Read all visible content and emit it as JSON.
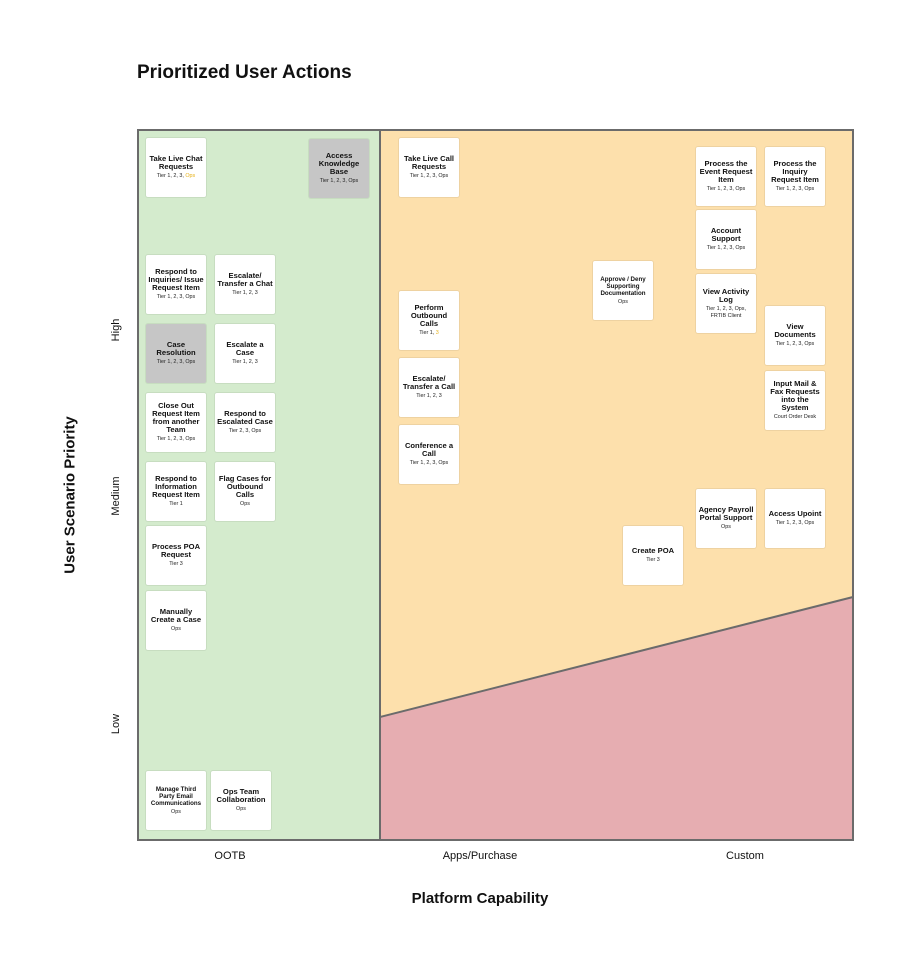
{
  "title": "Prioritized User Actions",
  "axes": {
    "y_title": "User Scenario Priority",
    "x_title": "Platform Capability",
    "y_levels": [
      "High",
      "Medium",
      "Low"
    ],
    "x_levels": [
      "OOTB",
      "Apps/Purchase",
      "Custom"
    ]
  },
  "colors": {
    "ootb_region": "#d4ebcd",
    "apps_region": "#fde0ac",
    "custom_region": "#e6adb1",
    "border": "#6b6b6b",
    "gray_card": "#c6c6c6",
    "highlight_text": "#e7b21b"
  },
  "cards": [
    {
      "title": "Take Live Chat Requests",
      "sub": "Tier 1, 2, 3, ",
      "hl": "Ops",
      "gray": false
    },
    {
      "title": "Access Knowledge Base",
      "sub": "Tier 1, 2, 3, Ops",
      "gray": true
    },
    {
      "title": "Respond to Inquiries/ Issue Request Item",
      "sub": "Tier 1, 2, 3, Ops",
      "gray": false
    },
    {
      "title": "Escalate/ Transfer a Chat",
      "sub": "Tier 1, 2, 3",
      "gray": false
    },
    {
      "title": "Case Resolution",
      "sub": "Tier 1, 2, 3, Ops",
      "gray": true
    },
    {
      "title": "Escalate a Case",
      "sub": "Tier 1, 2, 3",
      "gray": false
    },
    {
      "title": "Close Out Request Item from another Team",
      "sub": "Tier 1, 2, 3, Ops",
      "gray": false
    },
    {
      "title": "Respond to Escalated Case",
      "sub": "Tier 2, 3, Ops",
      "gray": false
    },
    {
      "title": "Respond to Information Request Item",
      "sub": "Tier 1",
      "gray": false
    },
    {
      "title": "Flag Cases for Outbound Calls",
      "sub": "Ops",
      "gray": false
    },
    {
      "title": "Process POA Request",
      "sub": "Tier 3",
      "gray": false
    },
    {
      "title": "Manually Create a Case",
      "sub": "Ops",
      "gray": false
    },
    {
      "title": "Manage Third Party Email Communications",
      "sub": "Ops",
      "gray": false,
      "small": true
    },
    {
      "title": "Ops Team Collaboration",
      "sub": "Ops",
      "gray": false
    },
    {
      "title": "Take Live Call Requests",
      "sub": "Tier 1, 2, 3, Ops",
      "gray": false
    },
    {
      "title": "Perform Outbound Calls",
      "sub": "Tier 1, ",
      "hl": "3",
      "gray": false
    },
    {
      "title": "Escalate/ Transfer a Call",
      "sub": "Tier 1, 2, 3",
      "gray": false
    },
    {
      "title": "Conference a Call",
      "sub": "Tier 1, 2, 3, Ops",
      "gray": false
    },
    {
      "title": "Approve / Deny Supporting Documentation",
      "sub": "Ops",
      "gray": false,
      "small": true
    },
    {
      "title": "Create POA",
      "sub": "Tier 3",
      "gray": false
    },
    {
      "title": "Process the Event Request Item",
      "sub": "Tier 1, 2, 3, Ops",
      "gray": false
    },
    {
      "title": "Process the Inquiry Request Item",
      "sub": "Tier 1, 2, 3, Ops",
      "gray": false
    },
    {
      "title": "Account Support",
      "sub": "Tier 1, 2, 3, Ops",
      "gray": false
    },
    {
      "title": "View Activity Log",
      "sub": "Tier 1, 2, 3, Ops, FRTIB Client",
      "gray": false
    },
    {
      "title": "View Documents",
      "sub": "Tier 1, 2, 3, Ops",
      "gray": false
    },
    {
      "title": "Input Mail & Fax Requests into the System",
      "sub": "Court Order Desk",
      "gray": false
    },
    {
      "title": "Agency Payroll Portal Support",
      "sub": "Ops",
      "gray": false
    },
    {
      "title": "Access Upoint",
      "sub": "Tier 1, 2, 3, Ops",
      "gray": false
    }
  ]
}
